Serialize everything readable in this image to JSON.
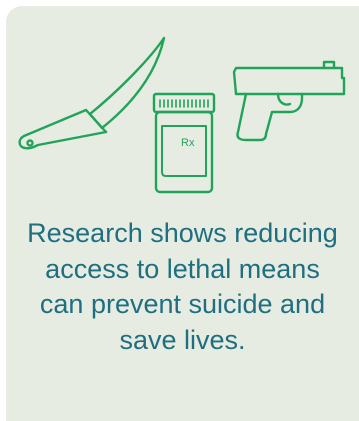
{
  "colors": {
    "card_background": "#e6ece2",
    "icon_stroke": "#22a35a",
    "text": "#1f6f80"
  },
  "icons": [
    "knife-icon",
    "pill-bottle-icon",
    "handgun-icon"
  ],
  "pill_bottle_label": "Rx",
  "message": "Research shows reducing access to lethal means can prevent suicide and save lives."
}
